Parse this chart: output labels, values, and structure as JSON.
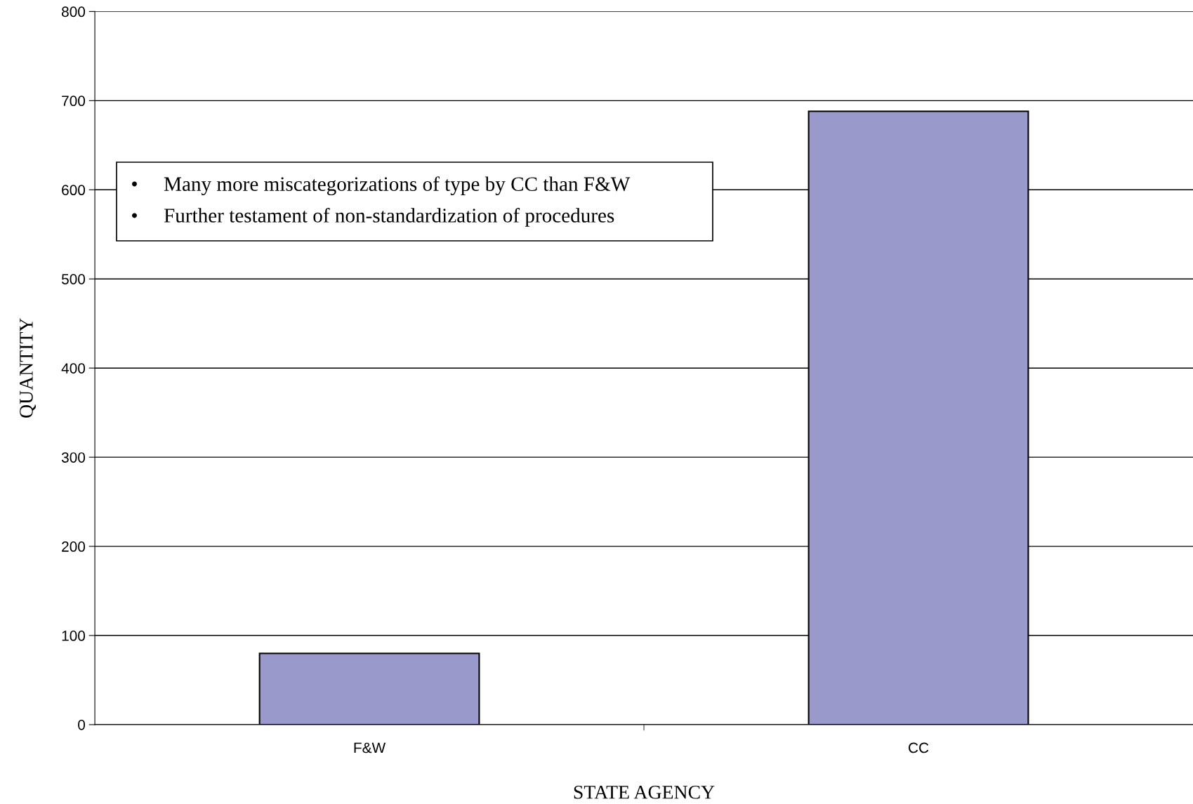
{
  "chart_data": {
    "type": "bar",
    "xlabel": "STATE AGENCY",
    "ylabel": "QUANTITY",
    "categories": [
      "F&W",
      "CC"
    ],
    "values": [
      80,
      688
    ],
    "color": "#9999cc",
    "ylim": [
      0,
      800
    ],
    "yticks": [
      0,
      100,
      200,
      300,
      400,
      500,
      600,
      700,
      800
    ],
    "grid": "y",
    "annotations": [
      "•     Many more miscategorizations of type by CC than F&W",
      "•     Further testament of non-standardization of procedures"
    ]
  }
}
